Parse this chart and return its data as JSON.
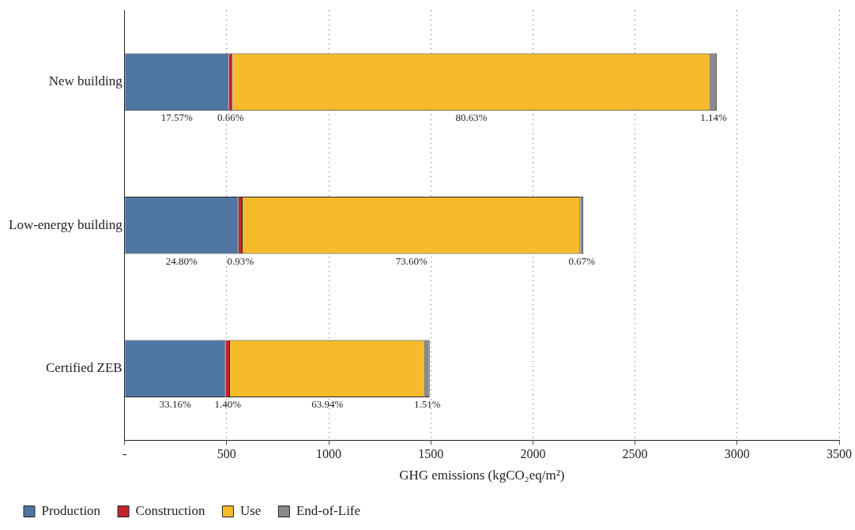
{
  "chart_data": {
    "type": "bar",
    "orientation": "horizontal",
    "stacked": true,
    "categories": [
      "New building",
      "Low-energy building",
      "Certified ZEB"
    ],
    "series": [
      {
        "name": "Production",
        "color": "#4f76a3",
        "values": [
          510,
          557,
          495
        ]
      },
      {
        "name": "Construction",
        "color": "#c0262b",
        "values": [
          19,
          21,
          21
        ]
      },
      {
        "name": "Use",
        "color": "#f5bb2b",
        "values": [
          2339,
          1654,
          955
        ]
      },
      {
        "name": "End-of-Life",
        "color": "#8a8a8a",
        "values": [
          33,
          15,
          23
        ]
      }
    ],
    "annotations": [
      "17.57%",
      "0.66%",
      "80.63%",
      "1.14%",
      "24.80%",
      "0.93%",
      "73.60%",
      "0.67%",
      "33.16%",
      "1.40%",
      "63.94%",
      "1.51%"
    ],
    "xlabel": "GHG emissions (kgCO₂eq/m²)",
    "xlim": [
      0,
      3500
    ],
    "xticks": [
      {
        "value": 0,
        "label": "-"
      },
      500,
      1000,
      1500,
      2000,
      2500,
      3000,
      3500
    ],
    "grid": "x",
    "legend": "bottom left"
  }
}
